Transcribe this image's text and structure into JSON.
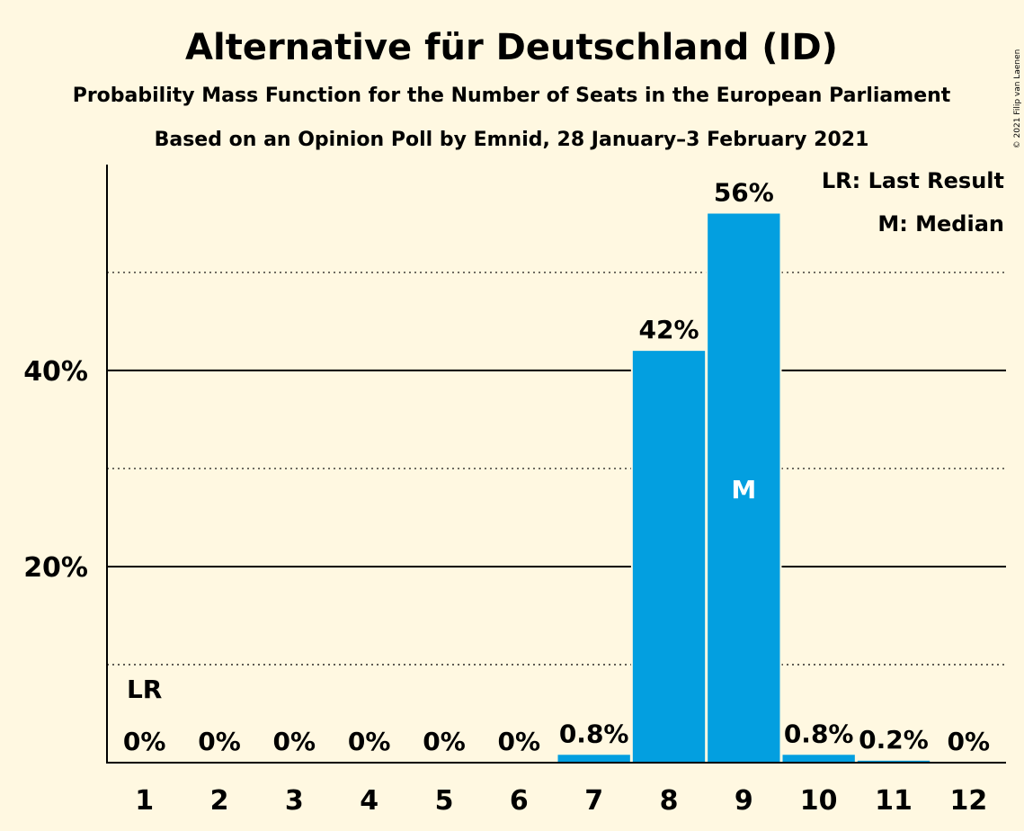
{
  "chart_data": {
    "type": "bar",
    "title": "Alternative für Deutschland (ID)",
    "subtitle": "Probability Mass Function for the Number of Seats in the European Parliament",
    "subtitle2": "Based on an Opinion Poll by Emnid, 28 January–3 February 2021",
    "copyright": "© 2021 Filip van Laenen",
    "categories": [
      "1",
      "2",
      "3",
      "4",
      "5",
      "6",
      "7",
      "8",
      "9",
      "10",
      "11",
      "12"
    ],
    "values": [
      0,
      0,
      0,
      0,
      0,
      0,
      0.8,
      42,
      56,
      0.8,
      0.2,
      0
    ],
    "value_labels": [
      "0%",
      "0%",
      "0%",
      "0%",
      "0%",
      "0%",
      "0.8%",
      "42%",
      "56%",
      "0.8%",
      "0.2%",
      "0%"
    ],
    "ylim": [
      0,
      61
    ],
    "yticks": [
      20,
      40
    ],
    "ytick_labels": [
      "20%",
      "40%"
    ],
    "minor_gridlines": [
      10,
      30,
      50
    ],
    "last_result_category": "1",
    "last_result_marker": "LR",
    "median_category": "9",
    "median_marker": "M",
    "legend": [
      "LR: Last Result",
      "M: Median"
    ],
    "legend_position": "top-right",
    "bar_color": "#039FE0"
  }
}
